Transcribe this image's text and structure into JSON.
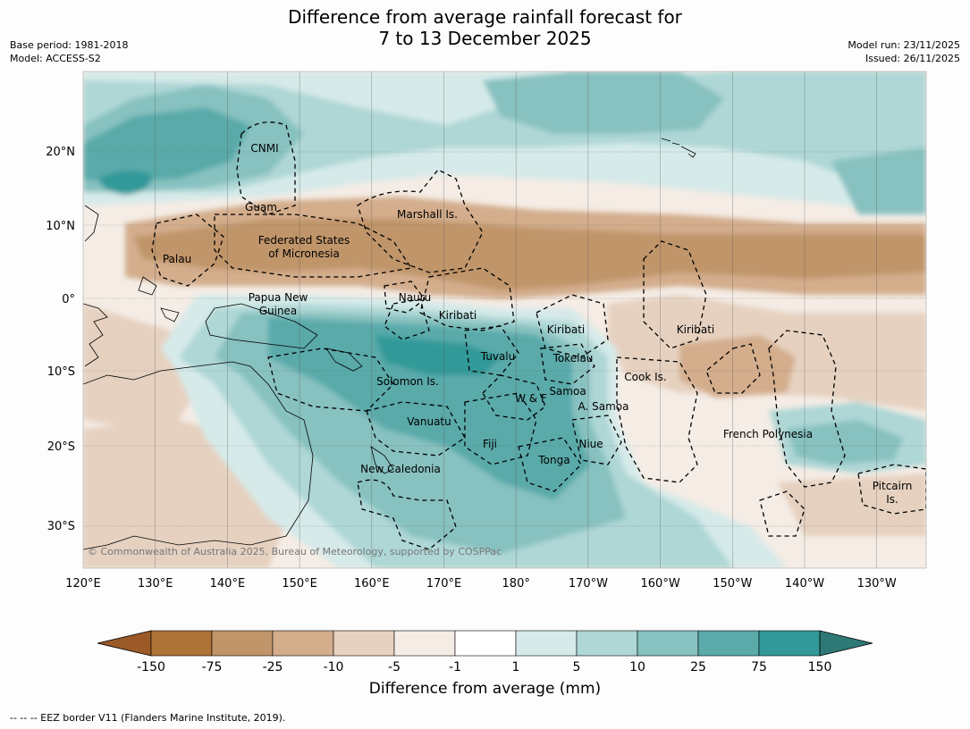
{
  "header": {
    "title_line1": "Difference from average rainfall forecast for",
    "title_line2": "7 to 13 December 2025",
    "base_period": "Base period: 1981-2018",
    "model": "Model: ACCESS-S2",
    "model_run": "Model run: 23/11/2025",
    "issued": "Issued: 26/11/2025"
  },
  "map": {
    "lon_labels": [
      "120°E",
      "130°E",
      "140°E",
      "150°E",
      "160°E",
      "170°E",
      "180°",
      "170°W",
      "160°W",
      "150°W",
      "140°W",
      "130°W"
    ],
    "lat_labels": [
      "20°N",
      "10°N",
      "0°",
      "10°S",
      "20°S",
      "30°S"
    ],
    "region_labels": [
      [
        "CNMI"
      ],
      [
        "Guam"
      ],
      [
        "Marshall Is."
      ],
      [
        "Federated States",
        "of Micronesia"
      ],
      [
        "Palau"
      ],
      [
        "Nauru"
      ],
      [
        "Papua New",
        "Guinea"
      ],
      [
        "Kiribati"
      ],
      [
        "Kiribati"
      ],
      [
        "Kiribati"
      ],
      [
        "Tuvalu"
      ],
      [
        "Tokelau"
      ],
      [
        "Cook Is."
      ],
      [
        "Solomon Is."
      ],
      [
        "Samoa"
      ],
      [
        "W & F"
      ],
      [
        "A. Samoa"
      ],
      [
        "Vanuatu"
      ],
      [
        "Fiji"
      ],
      [
        "Niue"
      ],
      [
        "Tonga"
      ],
      [
        "French Polynesia"
      ],
      [
        "New Caledonia"
      ],
      [
        "Pitcairn",
        "Is."
      ]
    ],
    "copyright": "© Commonwealth of Australia 2025, Bureau of Meteorology, supported by COSPPac"
  },
  "legend": {
    "label": "Difference from average (mm)",
    "ticks": [
      "-150",
      "-75",
      "-25",
      "-10",
      "-5",
      "-1",
      "1",
      "5",
      "10",
      "25",
      "75",
      "150"
    ],
    "colors": [
      "#9b5a28",
      "#ad7337",
      "#c0956a",
      "#d3ad8c",
      "#e6d1c0",
      "#f4ece5",
      "#ffffff",
      "#d5eae9",
      "#aed7d6",
      "#87c1c0",
      "#5aaaaa",
      "#339999",
      "#2e7875"
    ]
  },
  "footnote": "--  --  -- EEZ border V11 (Flanders Marine Institute, 2019)."
}
